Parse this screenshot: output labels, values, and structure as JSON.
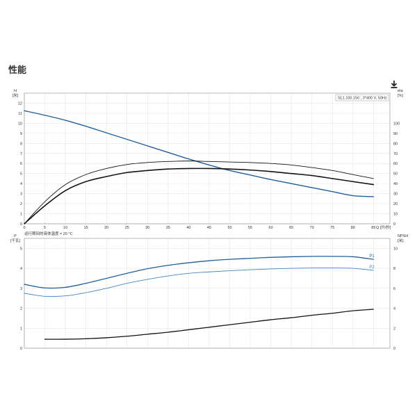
{
  "page": {
    "title": "性能"
  },
  "toolbar": {
    "download_icon": "download-icon"
  },
  "colors": {
    "blue": "#1f5f9e",
    "light_blue": "#3d86c6",
    "black": "#111111",
    "grid": "#e2e2e2",
    "axis": "#888888"
  },
  "chart_data": [
    {
      "type": "line",
      "info_box": "SL1.100.150 , 3*400 V, 50Hz",
      "note": "运行期间的液体温度 = 20 °C",
      "y_left_label": [
        "H",
        "[米]"
      ],
      "y_right_label": [
        "eta",
        "[%]"
      ],
      "x_label": "Q [升/秒]",
      "x_ticks": [
        0,
        5,
        10,
        15,
        20,
        25,
        30,
        35,
        40,
        45,
        50,
        55,
        60,
        65,
        70,
        75,
        80,
        85
      ],
      "y_left_ticks": [
        0,
        1,
        2,
        3,
        4,
        5,
        6,
        7,
        8,
        9,
        10,
        11,
        12
      ],
      "y_right_ticks": [
        0,
        10,
        20,
        30,
        40,
        50,
        60,
        70,
        80,
        90,
        100
      ],
      "xlim": [
        0,
        89
      ],
      "ylim_left": [
        0,
        13
      ],
      "ylim_right": [
        0,
        130
      ],
      "grid": true,
      "series": [
        {
          "axis": "left",
          "color": "#1f5f9e",
          "width": 1.4,
          "x": [
            0,
            5,
            10,
            15,
            20,
            25,
            30,
            35,
            40,
            45,
            50,
            55,
            60,
            65,
            70,
            75,
            80,
            85
          ],
          "y": [
            11.25,
            10.8,
            10.3,
            9.7,
            9.05,
            8.4,
            7.75,
            7.1,
            6.45,
            5.85,
            5.3,
            4.85,
            4.4,
            4.0,
            3.6,
            3.2,
            2.8,
            2.7
          ]
        },
        {
          "axis": "right",
          "color": "#111111",
          "width": 0.9,
          "x": [
            0,
            5,
            10,
            15,
            20,
            25,
            30,
            35,
            40,
            45,
            50,
            55,
            60,
            65,
            70,
            75,
            80,
            85
          ],
          "y": [
            0,
            22,
            39,
            49,
            55,
            59,
            61,
            62,
            62.5,
            62,
            61.5,
            61,
            60,
            58.5,
            56,
            53,
            49,
            45
          ]
        },
        {
          "axis": "right",
          "color": "#111111",
          "width": 1.6,
          "x": [
            0,
            5,
            10,
            15,
            20,
            25,
            30,
            35,
            40,
            45,
            50,
            55,
            60,
            65,
            70,
            75,
            80,
            85
          ],
          "y": [
            0,
            18,
            33,
            42,
            47,
            51,
            53,
            54.5,
            55,
            55,
            54.5,
            53.5,
            52,
            50,
            48,
            45,
            42,
            39
          ]
        }
      ]
    },
    {
      "type": "line",
      "y_left_label": [
        "P",
        "[千瓦]"
      ],
      "y_right_label": [
        "NPSH",
        "[米]"
      ],
      "x_ticks": [
        0,
        5,
        10,
        15,
        20,
        25,
        30,
        35,
        40,
        45,
        50,
        55,
        60,
        65,
        70,
        75,
        80,
        85
      ],
      "y_left_ticks": [
        0,
        1,
        2,
        3,
        4,
        5
      ],
      "y_right_ticks": [
        0,
        2,
        4,
        6,
        8,
        10
      ],
      "xlim": [
        0,
        89
      ],
      "ylim_left": [
        0,
        5.5
      ],
      "ylim_right": [
        0,
        11
      ],
      "grid": true,
      "series": [
        {
          "name": "P1",
          "axis": "left",
          "color": "#1f5f9e",
          "width": 1.3,
          "x": [
            0,
            5,
            10,
            15,
            20,
            25,
            30,
            35,
            40,
            45,
            50,
            55,
            60,
            65,
            70,
            75,
            80,
            85
          ],
          "y": [
            3.2,
            3.02,
            3.05,
            3.25,
            3.5,
            3.75,
            3.98,
            4.15,
            4.28,
            4.38,
            4.45,
            4.5,
            4.55,
            4.58,
            4.6,
            4.6,
            4.58,
            4.45
          ]
        },
        {
          "name": "P2",
          "axis": "left",
          "color": "#3d86c6",
          "width": 0.9,
          "x": [
            0,
            5,
            10,
            15,
            20,
            25,
            30,
            35,
            40,
            45,
            50,
            55,
            60,
            65,
            70,
            75,
            80,
            85
          ],
          "y": [
            2.75,
            2.6,
            2.62,
            2.78,
            3.0,
            3.25,
            3.45,
            3.62,
            3.75,
            3.82,
            3.88,
            3.93,
            3.97,
            4.0,
            4.02,
            4.02,
            4.0,
            3.9
          ]
        },
        {
          "axis": "right",
          "color": "#111111",
          "width": 1.3,
          "x": [
            5,
            10,
            15,
            20,
            25,
            30,
            35,
            40,
            45,
            50,
            55,
            60,
            65,
            70,
            75,
            80,
            85
          ],
          "y": [
            0.9,
            0.9,
            0.95,
            1.05,
            1.2,
            1.4,
            1.6,
            1.85,
            2.1,
            2.35,
            2.6,
            2.85,
            3.05,
            3.3,
            3.5,
            3.75,
            3.9
          ]
        }
      ]
    }
  ]
}
